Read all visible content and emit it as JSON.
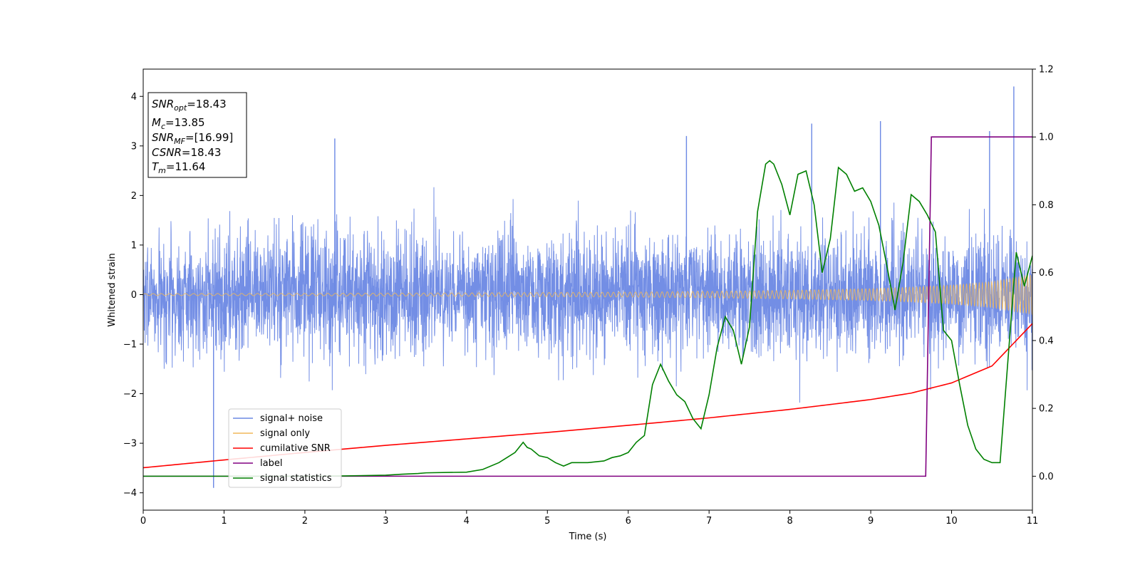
{
  "chart_data": {
    "type": "line",
    "xlabel": "Time (s)",
    "ylabel": "Whitened strain",
    "xlim": [
      0,
      11
    ],
    "ylim": [
      -4.35,
      4.55
    ],
    "y2lim": [
      -0.1,
      1.2
    ],
    "x_ticks": [
      0,
      1,
      2,
      3,
      4,
      5,
      6,
      7,
      8,
      9,
      10,
      11
    ],
    "y_ticks": [
      -4,
      -3,
      -2,
      -1,
      0,
      1,
      2,
      3,
      4
    ],
    "y2_ticks": [
      "0.0",
      "0.2",
      "0.4",
      "0.6",
      "0.8",
      "1.0",
      "1.2"
    ],
    "colors": {
      "signal_noise": "#6b88e4",
      "signal_only": "#f0b85a",
      "cumulative_snr": "#ff0000",
      "label": "#800080",
      "signal_statistics": "#008000"
    },
    "legend": {
      "placement": "lower-left",
      "entries": [
        "signal+ noise",
        "signal only",
        "cumilative SNR",
        "label",
        "signal statistics"
      ]
    },
    "info_box": {
      "line1": {
        "main": "SNR",
        "sub": "opt",
        "value": "=18.43"
      },
      "line2": {
        "main": "M",
        "sub": "c",
        "value": "=13.85"
      },
      "line3": {
        "main": "SNR",
        "sub": "MF",
        "value": "=[16.99]"
      },
      "line4": {
        "main": "CSNR",
        "sub": "",
        "value": "=18.43"
      },
      "line5": {
        "main": "T",
        "sub": "m",
        "value": "=11.64"
      }
    },
    "series": [
      {
        "name": "signal+ noise",
        "axis": "left",
        "description_of_values": "whitened noise, roughly uniform envelope about ±2, spikes up to 4.2",
        "spikes": [
          [
            0.87,
            -3.9
          ],
          [
            10.77,
            4.2
          ],
          [
            8.27,
            3.45
          ],
          [
            9.12,
            3.5
          ],
          [
            10.47,
            3.3
          ],
          [
            6.72,
            3.2
          ],
          [
            2.37,
            3.15
          ]
        ]
      },
      {
        "name": "signal only",
        "axis": "left",
        "amplitude_x": [
          0,
          2,
          4,
          6,
          7,
          8,
          9,
          9.5,
          10,
          10.5,
          11
        ],
        "amplitude_y": [
          0.02,
          0.025,
          0.035,
          0.05,
          0.065,
          0.085,
          0.12,
          0.15,
          0.19,
          0.26,
          0.4
        ]
      },
      {
        "name": "cumilative SNR",
        "axis": "right",
        "x": [
          0,
          1,
          2,
          3,
          4,
          5,
          6,
          7,
          8,
          9,
          9.5,
          10,
          10.5,
          11
        ],
        "y": [
          0.025,
          0.048,
          0.07,
          0.091,
          0.11,
          0.129,
          0.15,
          0.172,
          0.197,
          0.226,
          0.245,
          0.275,
          0.325,
          0.45
        ]
      },
      {
        "name": "label",
        "axis": "right",
        "x": [
          0,
          9.68,
          9.75,
          11
        ],
        "y": [
          0,
          0,
          1,
          1
        ]
      },
      {
        "name": "signal statistics",
        "axis": "right",
        "x": [
          0,
          1,
          2,
          2.5,
          3,
          3.2,
          3.4,
          3.5,
          4,
          4.2,
          4.4,
          4.5,
          4.6,
          4.7,
          4.75,
          4.8,
          4.9,
          5,
          5.1,
          5.2,
          5.3,
          5.5,
          5.7,
          5.8,
          5.9,
          6,
          6.1,
          6.2,
          6.3,
          6.4,
          6.5,
          6.6,
          6.7,
          6.8,
          6.9,
          7.0,
          7.1,
          7.2,
          7.3,
          7.4,
          7.5,
          7.6,
          7.7,
          7.75,
          7.8,
          7.9,
          8.0,
          8.1,
          8.2,
          8.3,
          8.4,
          8.5,
          8.6,
          8.7,
          8.8,
          8.9,
          9.0,
          9.1,
          9.2,
          9.3,
          9.4,
          9.5,
          9.6,
          9.7,
          9.8,
          9.9,
          10.0,
          10.1,
          10.2,
          10.3,
          10.4,
          10.5,
          10.6,
          10.7,
          10.8,
          10.9,
          11
        ],
        "y": [
          0.0,
          0.0,
          0.0,
          0.001,
          0.003,
          0.006,
          0.008,
          0.01,
          0.012,
          0.02,
          0.04,
          0.055,
          0.07,
          0.1,
          0.085,
          0.08,
          0.06,
          0.055,
          0.04,
          0.03,
          0.04,
          0.04,
          0.045,
          0.055,
          0.06,
          0.07,
          0.1,
          0.12,
          0.27,
          0.33,
          0.28,
          0.24,
          0.22,
          0.17,
          0.14,
          0.24,
          0.38,
          0.47,
          0.43,
          0.33,
          0.44,
          0.78,
          0.92,
          0.93,
          0.92,
          0.86,
          0.77,
          0.89,
          0.9,
          0.8,
          0.6,
          0.7,
          0.91,
          0.89,
          0.84,
          0.85,
          0.81,
          0.74,
          0.62,
          0.49,
          0.63,
          0.83,
          0.81,
          0.77,
          0.72,
          0.43,
          0.4,
          0.27,
          0.15,
          0.08,
          0.05,
          0.04,
          0.04,
          0.35,
          0.66,
          0.56,
          0.65
        ]
      }
    ]
  }
}
